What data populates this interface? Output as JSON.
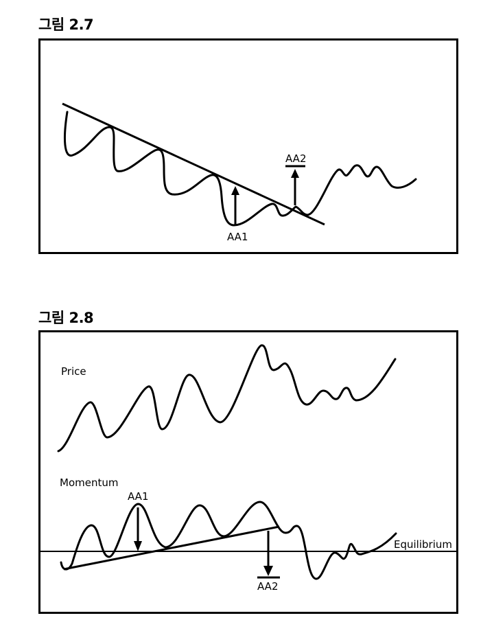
{
  "figure1": {
    "title": "그림 2.7",
    "labels": {
      "aa1": "AA1",
      "aa2": "AA2"
    }
  },
  "figure2": {
    "title": "그림 2.8",
    "labels": {
      "price": "Price",
      "momentum": "Momentum",
      "aa1": "AA1",
      "aa2": "AA2",
      "equilibrium": "Equilibrium"
    }
  }
}
